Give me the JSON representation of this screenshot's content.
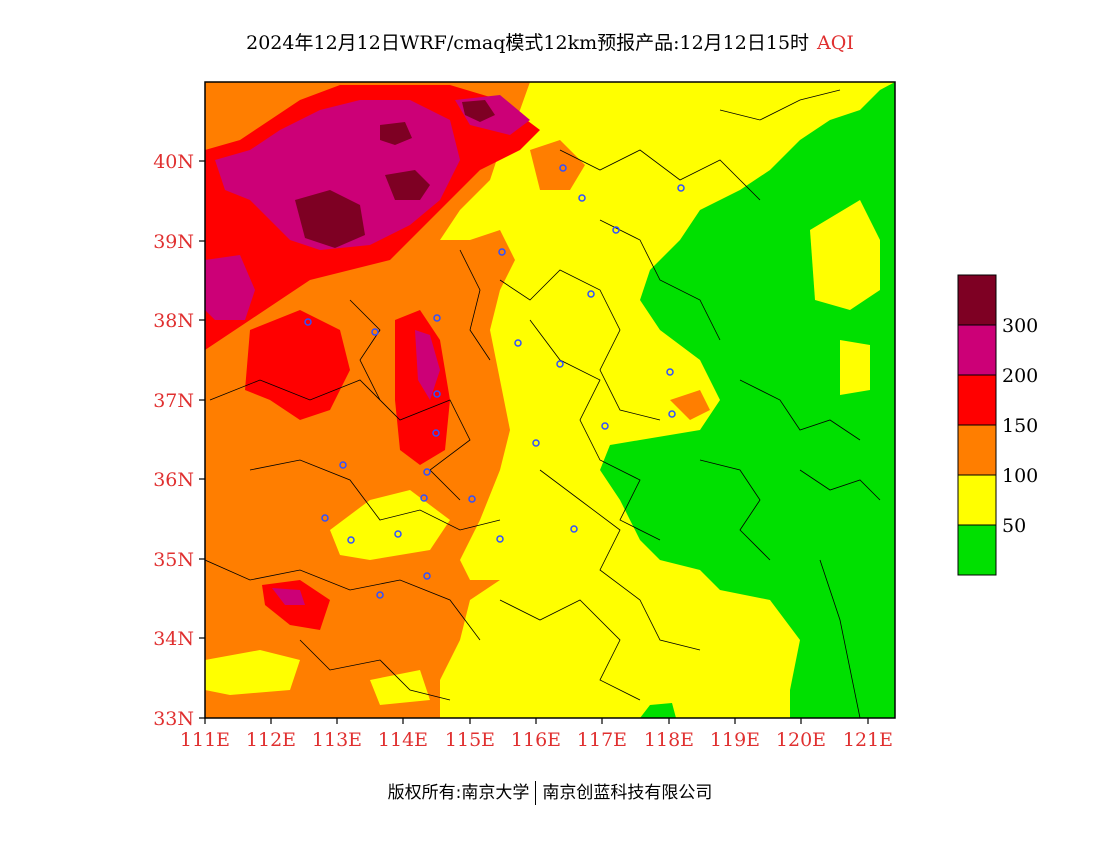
{
  "title": {
    "main": "2024年12月12日WRF/cmaq模式12km预报产品:12月12日15时",
    "variable": "AQI"
  },
  "footer": {
    "left": "版权所有:南京大学",
    "right": "南京创蓝科技有限公司"
  },
  "map": {
    "lon_range": [
      111,
      121.4
    ],
    "lat_range": [
      33,
      41
    ],
    "lon_ticks": [
      "111E",
      "112E",
      "113E",
      "114E",
      "115E",
      "116E",
      "117E",
      "118E",
      "119E",
      "120E",
      "121E"
    ],
    "lat_ticks": [
      "33N",
      "34N",
      "35N",
      "36N",
      "37N",
      "38N",
      "39N",
      "40N"
    ],
    "colors": {
      "green": "#00e000",
      "yellow": "#ffff00",
      "orange": "#ff7e00",
      "red": "#ff0000",
      "purple": "#cc0077",
      "maroon": "#7e0023",
      "tick_label": "#e03030",
      "city_marker": "#3050ff"
    }
  },
  "colorbar": {
    "levels": [
      "300",
      "200",
      "150",
      "100",
      "50"
    ],
    "colors": [
      "#7e0023",
      "#cc0077",
      "#ff0000",
      "#ff7e00",
      "#ffff00",
      "#00e000"
    ]
  }
}
